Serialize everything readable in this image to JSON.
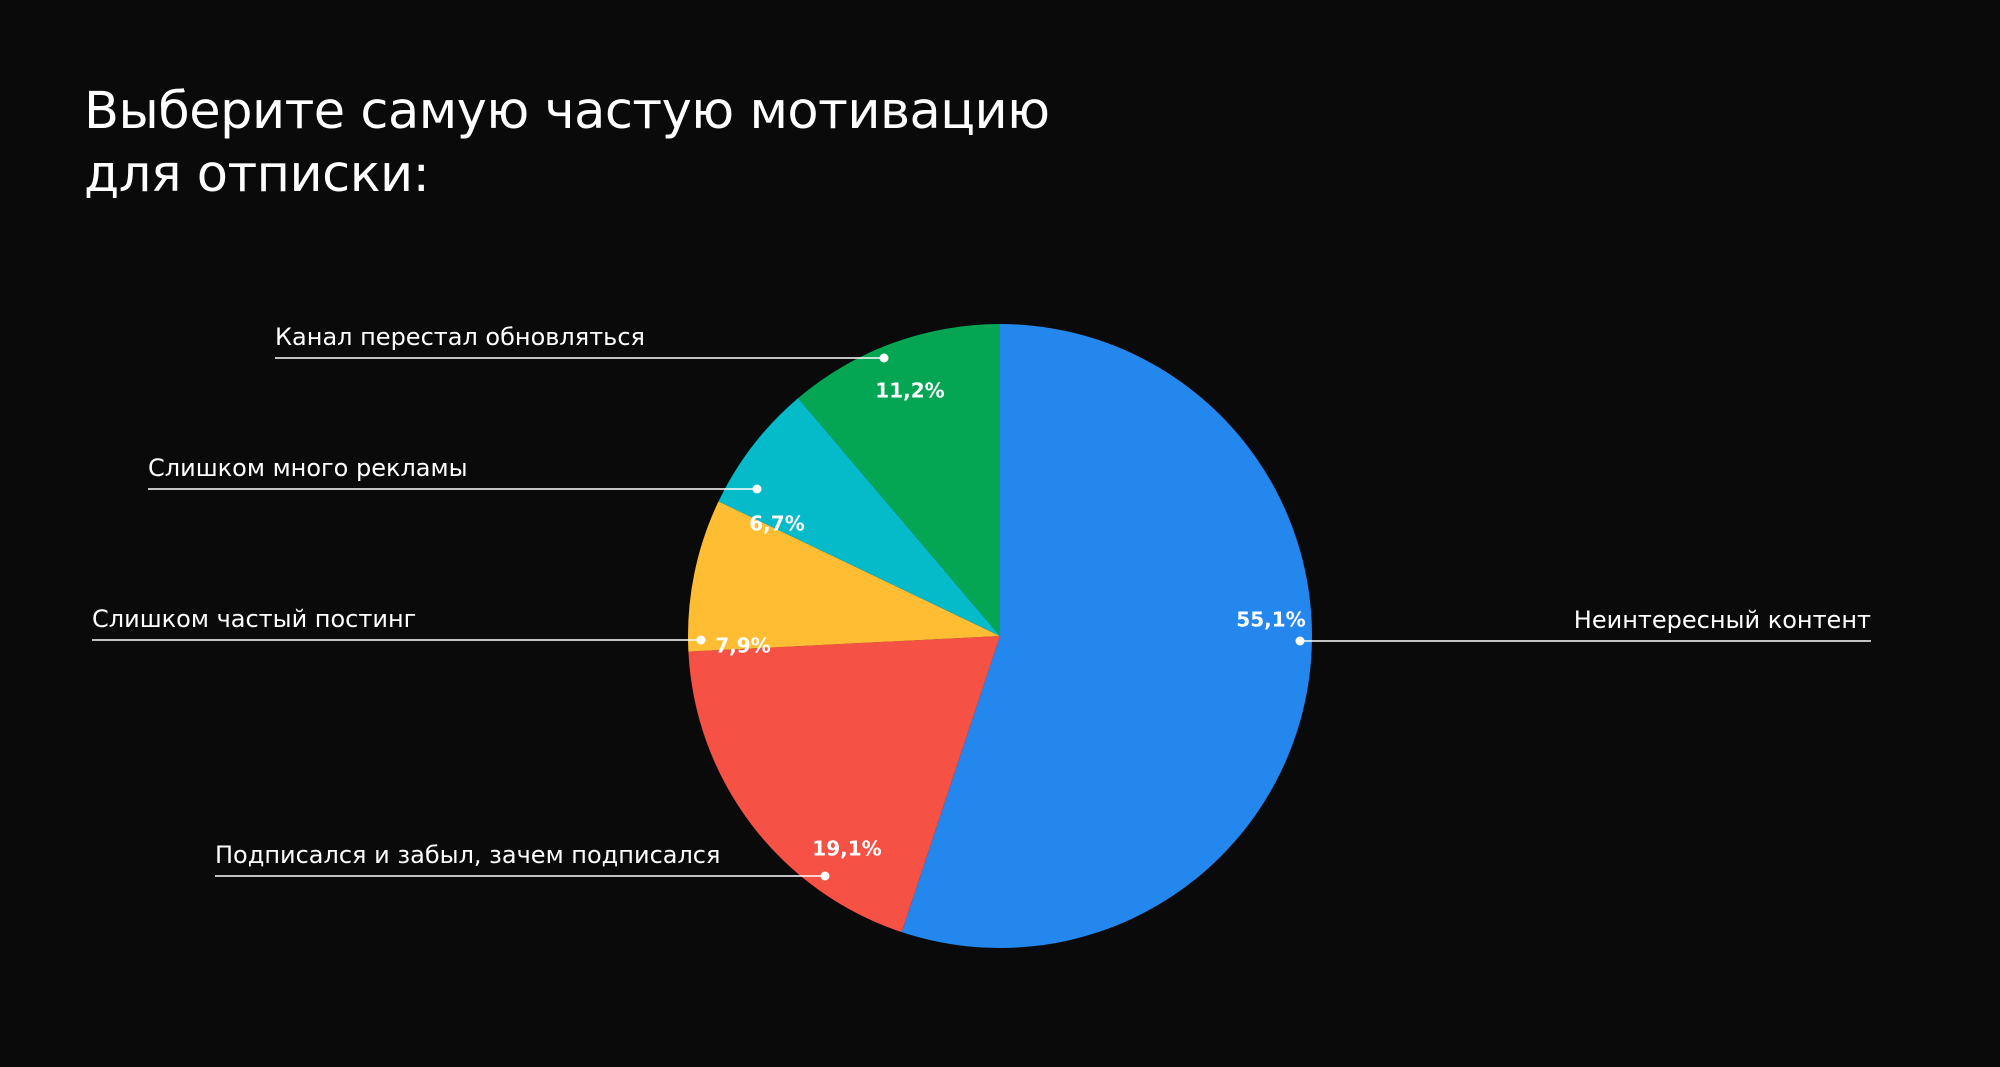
{
  "title_lines": [
    "Выберите самую частую мотивацию",
    "для отписки:"
  ],
  "colors": {
    "background": "#0a0a0a",
    "text": "#ffffff",
    "leader_line": "#ffffff"
  },
  "chart_data": {
    "type": "pie",
    "title": "Выберите самую частую мотивацию для отписки:",
    "slices": [
      {
        "label": "Неинтересный контент",
        "value": 55.1,
        "value_label": "55,1%",
        "color": "#2487EE"
      },
      {
        "label": "Подписался и забыл, зачем подписался",
        "value": 19.1,
        "value_label": "19,1%",
        "color": "#F55145"
      },
      {
        "label": "Слишком частый постинг",
        "value": 7.9,
        "value_label": "7,9%",
        "color": "#FFBD33"
      },
      {
        "label": "Слишком много рекламы",
        "value": 6.7,
        "value_label": "6,7%",
        "color": "#05BAC9"
      },
      {
        "label": "Канал перестал обновляться",
        "value": 11.2,
        "value_label": "11,2%",
        "color": "#04A553"
      }
    ]
  }
}
